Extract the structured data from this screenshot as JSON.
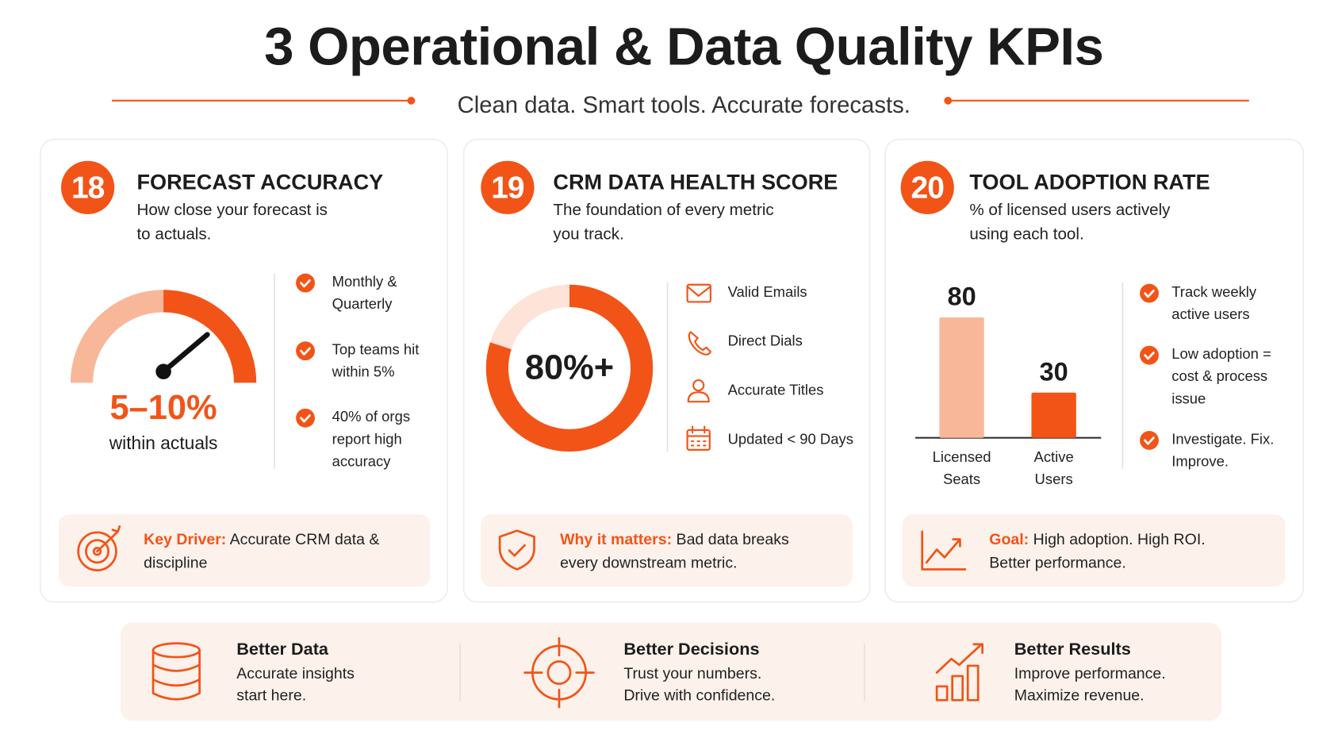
{
  "header": {
    "title": "3 Operational & Data Quality KPIs",
    "subtitle": "Clean data. Smart tools. Accurate forecasts."
  },
  "cards": [
    {
      "number": "18",
      "title": "FORECAST ACCURACY",
      "description": "How close your forecast is to actuals.",
      "metric": "5–10%",
      "metric_caption": "within actuals",
      "points": [
        "Monthly & Quarterly",
        "Top teams hit within 5%",
        "40% of orgs report high accuracy"
      ],
      "callout": {
        "label": "Key Driver:",
        "text": "Accurate CRM data & discipline"
      }
    },
    {
      "number": "19",
      "title": "CRM DATA HEALTH SCORE",
      "description": "The foundation of every metric you track.",
      "score": {
        "value": 80,
        "label": "80%+"
      },
      "points": [
        "Valid Emails",
        "Direct Dials",
        "Accurate Titles",
        "Updated < 90 Days"
      ],
      "callout": {
        "label": "Why it matters:",
        "text": "Bad data breaks every downstream metric."
      }
    },
    {
      "number": "20",
      "title": "TOOL ADOPTION RATE",
      "description": "% of licensed users actively using each tool.",
      "chart": {
        "categories": [
          "Licensed Seats",
          "Active Users"
        ],
        "values": [
          80,
          30
        ]
      },
      "points": [
        "Track weekly active users",
        "Low adoption = cost & process issue",
        "Investigate. Fix. Improve."
      ],
      "callout": {
        "label": "Goal:",
        "text": "High adoption. High ROI. Better performance."
      }
    }
  ],
  "footer": [
    {
      "title": "Better Data",
      "text": "Accurate insights start here."
    },
    {
      "title": "Better Decisions",
      "text": "Trust your numbers. Drive with confidence."
    },
    {
      "title": "Better Results",
      "text": "Improve performance. Maximize revenue."
    }
  ]
}
